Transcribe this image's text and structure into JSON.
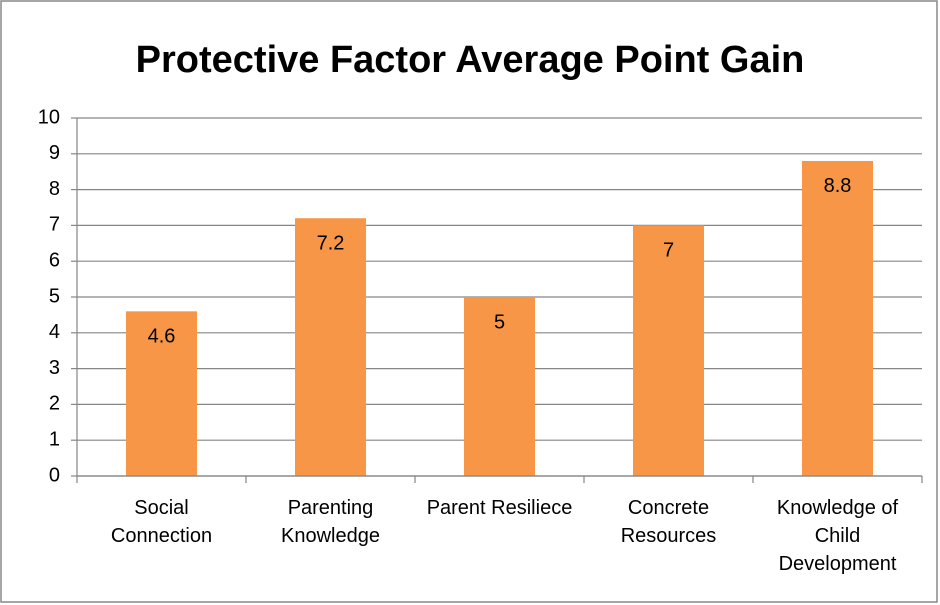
{
  "chart_data": {
    "type": "bar",
    "title": "Protective Factor Average Point Gain",
    "categories": [
      "Social Connection",
      "Parenting Knowledge",
      "Parent Resiliece",
      "Concrete Resources",
      "Knowledge of Child Development"
    ],
    "values": [
      4.6,
      7.2,
      5,
      7,
      8.8
    ],
    "color": "#f79646",
    "ylim": [
      0,
      10
    ],
    "yticks": [
      0,
      1,
      2,
      3,
      4,
      5,
      6,
      7,
      8,
      9,
      10
    ],
    "grid": true
  }
}
